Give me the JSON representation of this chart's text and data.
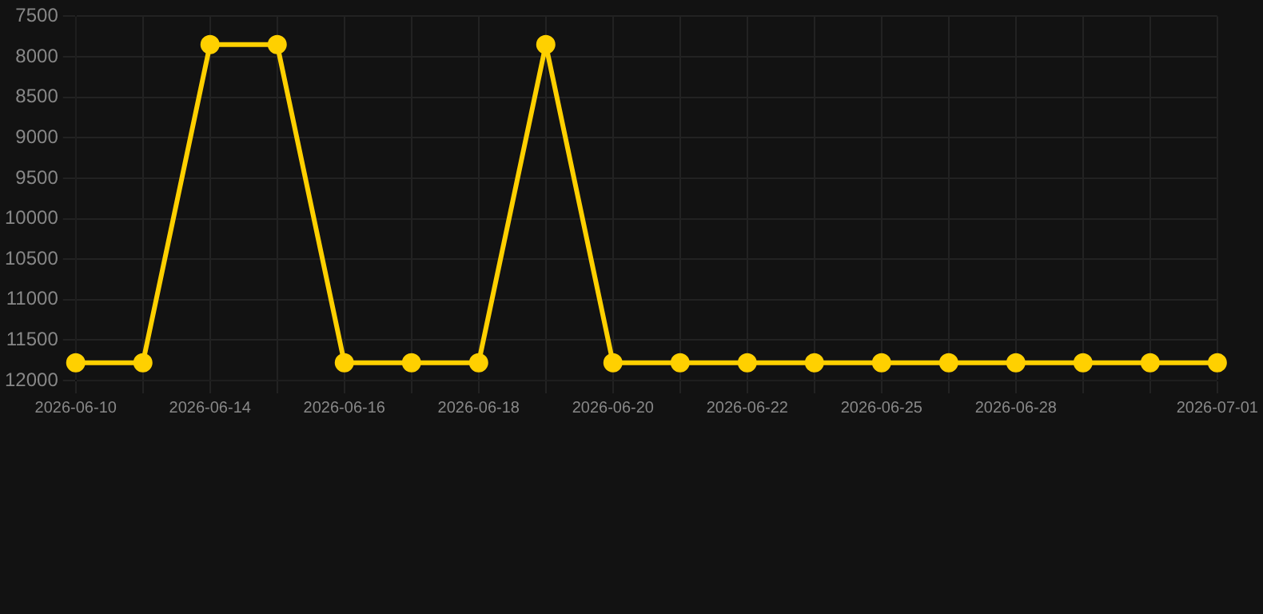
{
  "chart_data": {
    "type": "line",
    "categories": [
      "2026-06-10",
      null,
      "2026-06-14",
      null,
      "2026-06-16",
      null,
      "2026-06-18",
      null,
      "2026-06-20",
      null,
      "2026-06-22",
      null,
      "2026-06-25",
      null,
      "2026-06-28",
      null,
      null,
      "2026-07-01"
    ],
    "series": [
      {
        "color": "#ffd000",
        "values": [
          11780,
          11780,
          7850,
          7850,
          11780,
          11780,
          11780,
          7850,
          11780,
          11780,
          11780,
          11780,
          11780,
          11780,
          11780,
          11780,
          11780,
          11780
        ]
      }
    ],
    "ylim": [
      12000,
      7500
    ],
    "yticks": [
      7500,
      8000,
      8500,
      9000,
      9500,
      10000,
      10500,
      11000,
      11500,
      12000
    ],
    "grid": true,
    "legend": false,
    "marker": "circle",
    "line_style": "solid"
  }
}
